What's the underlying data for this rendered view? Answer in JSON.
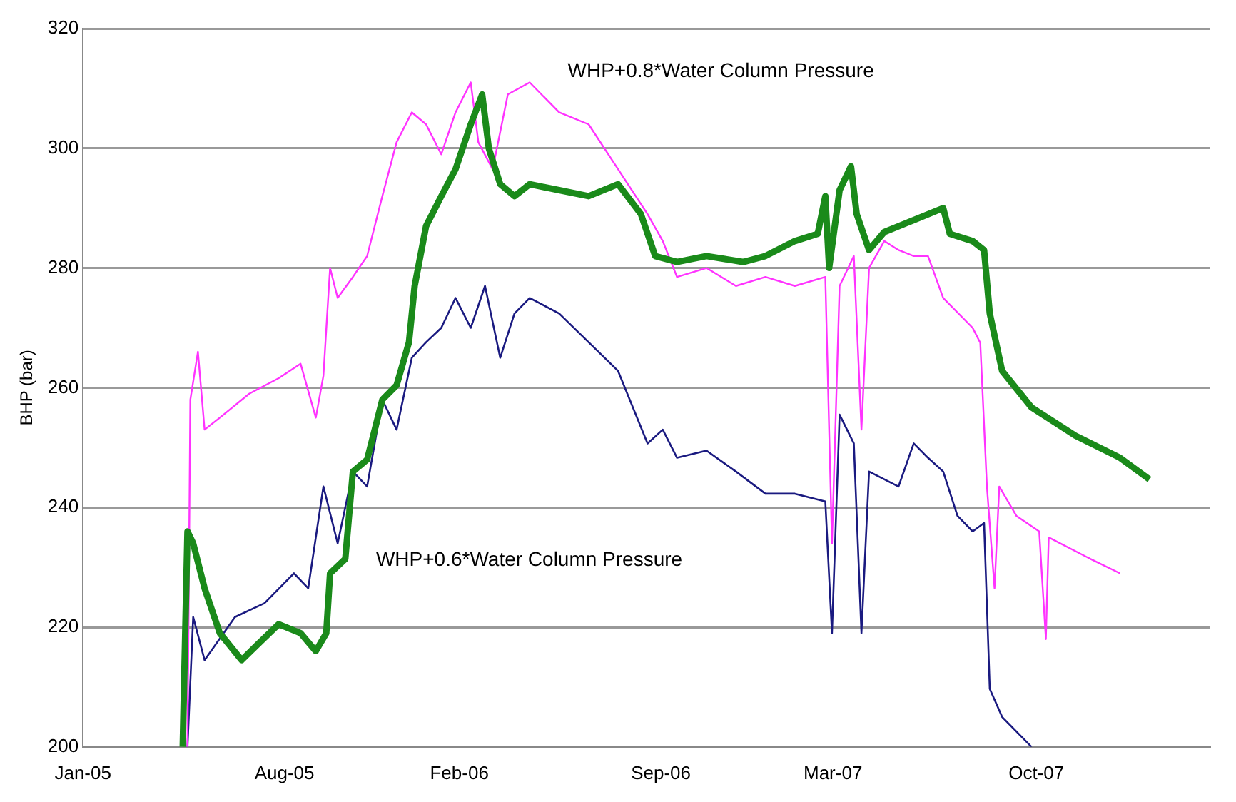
{
  "chart_data": {
    "type": "line",
    "ylabel": "BHP (bar)",
    "xlim": [
      "2005-01-01",
      "2008-04-01"
    ],
    "xticks": [
      {
        "value": "2005-01-01",
        "label": "Jan-05"
      },
      {
        "value": "2005-08-01",
        "label": "Aug-05"
      },
      {
        "value": "2006-02-01",
        "label": "Feb-06"
      },
      {
        "value": "2006-09-01",
        "label": "Sep-06"
      },
      {
        "value": "2007-03-01",
        "label": "Mar-07"
      },
      {
        "value": "2007-10-01",
        "label": "Oct-07"
      }
    ],
    "ylim": [
      200,
      320
    ],
    "yticks": [
      200,
      220,
      240,
      260,
      280,
      300,
      320
    ],
    "grid": "y",
    "legend": false,
    "marker": "none",
    "line_style": "solid",
    "annotations": [
      "WHP+0.8*Water Column Pressure",
      "WHP+0.6*Water Column Pressure"
    ],
    "series": [
      {
        "color": "#ff33ff",
        "x": [
          "2005-04-21",
          "2005-04-24",
          "2005-05-02",
          "2005-05-09",
          "2005-05-25",
          "2005-06-25",
          "2005-07-26",
          "2005-08-18",
          "2005-09-03",
          "2005-09-11",
          "2005-09-18",
          "2005-09-26",
          "2005-10-12",
          "2005-10-27",
          "2005-11-12",
          "2005-11-27",
          "2005-12-13",
          "2005-12-28",
          "2006-01-13",
          "2006-01-28",
          "2006-02-13",
          "2006-02-21",
          "2006-03-08",
          "2006-03-24",
          "2006-04-16",
          "2006-05-17",
          "2006-06-17",
          "2006-07-18",
          "2006-08-18",
          "2006-09-03",
          "2006-09-18",
          "2006-10-19",
          "2006-11-19",
          "2006-12-20",
          "2007-01-20",
          "2007-02-21",
          "2007-02-28",
          "2007-03-08",
          "2007-03-23",
          "2007-03-31",
          "2007-04-08",
          "2007-04-24",
          "2007-05-09",
          "2007-05-25",
          "2007-06-09",
          "2007-06-25",
          "2007-07-26",
          "2007-08-03",
          "2007-08-10",
          "2007-08-18",
          "2007-08-23",
          "2007-09-10",
          "2007-10-04",
          "2007-10-11",
          "2007-10-14",
          "2007-11-27",
          "2007-12-28"
        ],
        "values": [
          200,
          258,
          266,
          253,
          255,
          259,
          261.6,
          264,
          255,
          262,
          280,
          275,
          278.5,
          282,
          292,
          301,
          306,
          304,
          299,
          306,
          311,
          301,
          296.5,
          309,
          311,
          306,
          304,
          296.5,
          289,
          284.5,
          278.5,
          280,
          277,
          278.5,
          277,
          278.5,
          234,
          277,
          282,
          253,
          280,
          284.5,
          283,
          282,
          282,
          275,
          270,
          267.5,
          243.5,
          226.5,
          243.5,
          238.6,
          236,
          218,
          235,
          231.4,
          229
        ]
      },
      {
        "color": "#1a8a1a",
        "x": [
          "2005-04-16",
          "2005-04-21",
          "2005-04-27",
          "2005-05-09",
          "2005-05-25",
          "2005-06-17",
          "2005-07-03",
          "2005-07-26",
          "2005-08-18",
          "2005-09-03",
          "2005-09-14",
          "2005-09-18",
          "2005-10-04",
          "2005-10-12",
          "2005-10-27",
          "2005-11-12",
          "2005-11-27",
          "2005-12-10",
          "2005-12-16",
          "2005-12-28",
          "2006-01-13",
          "2006-01-28",
          "2006-02-13",
          "2006-02-25",
          "2006-03-04",
          "2006-03-16",
          "2006-03-31",
          "2006-04-16",
          "2006-05-17",
          "2006-06-17",
          "2006-07-18",
          "2006-08-11",
          "2006-08-26",
          "2006-09-18",
          "2006-10-19",
          "2006-11-27",
          "2006-12-20",
          "2007-01-20",
          "2007-02-13",
          "2007-02-21",
          "2007-02-25",
          "2007-03-08",
          "2007-03-20",
          "2007-03-26",
          "2007-04-08",
          "2007-04-24",
          "2007-05-25",
          "2007-06-25",
          "2007-07-02",
          "2007-07-26",
          "2007-08-07",
          "2007-08-13",
          "2007-08-26",
          "2007-09-26",
          "2007-11-11",
          "2007-12-28",
          "2008-01-28"
        ],
        "values": [
          200,
          236,
          234,
          226.5,
          219,
          214.5,
          217,
          220.5,
          219,
          216,
          219,
          229,
          231.4,
          246,
          248,
          258,
          260.4,
          267.6,
          277,
          287,
          292,
          296.5,
          304,
          309,
          300,
          294,
          292,
          294,
          293,
          292,
          294,
          289,
          282,
          281,
          282,
          281,
          282,
          284.5,
          285.7,
          292,
          280,
          293,
          297,
          289,
          283,
          286,
          288,
          290,
          285.7,
          284.5,
          283,
          272.4,
          262.8,
          256.7,
          252,
          248.3,
          244.7
        ]
      },
      {
        "color": "#1a1a80",
        "x": [
          "2005-04-21",
          "2005-04-27",
          "2005-05-09",
          "2005-06-10",
          "2005-07-11",
          "2005-08-11",
          "2005-08-26",
          "2005-09-11",
          "2005-09-26",
          "2005-10-12",
          "2005-10-27",
          "2005-11-12",
          "2005-11-27",
          "2005-12-13",
          "2005-12-28",
          "2006-01-13",
          "2006-01-28",
          "2006-02-13",
          "2006-02-28",
          "2006-03-16",
          "2006-03-31",
          "2006-04-16",
          "2006-05-17",
          "2006-06-17",
          "2006-07-18",
          "2006-08-18",
          "2006-09-03",
          "2006-09-18",
          "2006-10-19",
          "2006-11-19",
          "2006-12-20",
          "2007-01-20",
          "2007-02-21",
          "2007-02-28",
          "2007-03-08",
          "2007-03-23",
          "2007-03-31",
          "2007-04-08",
          "2007-05-09",
          "2007-05-25",
          "2007-06-09",
          "2007-06-25",
          "2007-07-10",
          "2007-07-26",
          "2007-08-07",
          "2007-08-13",
          "2007-08-26",
          "2007-09-26"
        ],
        "values": [
          200,
          221.7,
          214.5,
          221.7,
          224,
          229,
          226.5,
          243.5,
          234,
          246,
          243.5,
          258,
          253,
          265,
          267.6,
          270,
          275,
          270,
          277,
          265,
          272.4,
          275,
          272.4,
          267.6,
          262.8,
          250.7,
          253,
          248.3,
          249.5,
          246,
          242.3,
          242.3,
          241,
          219,
          255.5,
          250.7,
          219,
          246,
          243.5,
          250.7,
          248.3,
          246,
          238.6,
          236,
          237.4,
          209.7,
          205,
          200
        ]
      }
    ]
  }
}
